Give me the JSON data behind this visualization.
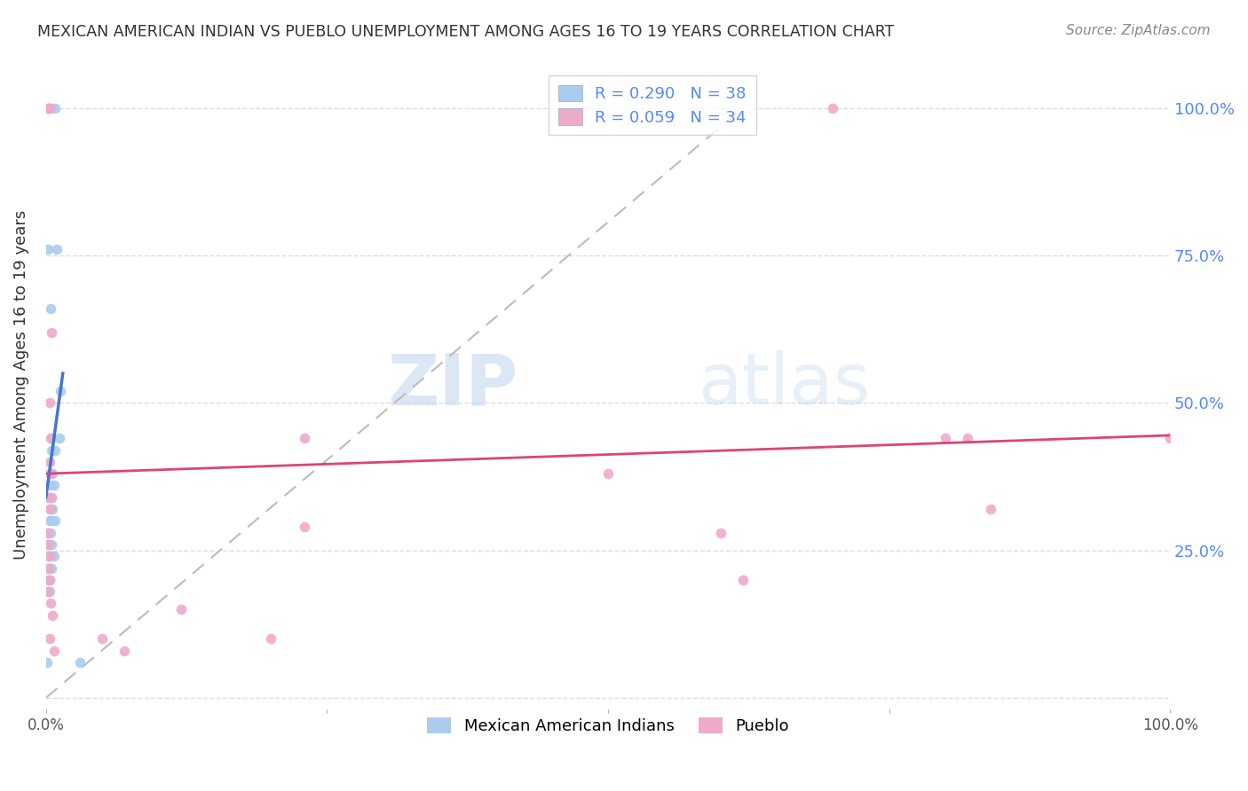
{
  "title": "MEXICAN AMERICAN INDIAN VS PUEBLO UNEMPLOYMENT AMONG AGES 16 TO 19 YEARS CORRELATION CHART",
  "source": "Source: ZipAtlas.com",
  "ylabel": "Unemployment Among Ages 16 to 19 years",
  "xlim": [
    0,
    1.0
  ],
  "ylim": [
    -0.02,
    1.08
  ],
  "watermark_zip": "ZIP",
  "watermark_atlas": "atlas",
  "legend_label_blue": "Mexican American Indians",
  "legend_label_pink": "Pueblo",
  "R_blue": 0.29,
  "N_blue": 38,
  "R_pink": 0.059,
  "N_pink": 34,
  "blue_line": [
    [
      0.0,
      0.34
    ],
    [
      0.015,
      0.55
    ]
  ],
  "pink_line": [
    [
      0.0,
      0.38
    ],
    [
      1.0,
      0.445
    ]
  ],
  "dashed_line": [
    [
      0.0,
      0.0
    ],
    [
      0.62,
      1.0
    ]
  ],
  "blue_scatter": [
    [
      0.002,
      1.0
    ],
    [
      0.003,
      1.0
    ],
    [
      0.008,
      1.0
    ],
    [
      0.002,
      0.76
    ],
    [
      0.01,
      0.76
    ],
    [
      0.004,
      0.66
    ],
    [
      0.013,
      0.52
    ],
    [
      0.005,
      0.44
    ],
    [
      0.012,
      0.44
    ],
    [
      0.005,
      0.42
    ],
    [
      0.008,
      0.42
    ],
    [
      0.003,
      0.38
    ],
    [
      0.006,
      0.38
    ],
    [
      0.004,
      0.36
    ],
    [
      0.007,
      0.36
    ],
    [
      0.003,
      0.34
    ],
    [
      0.005,
      0.34
    ],
    [
      0.004,
      0.32
    ],
    [
      0.006,
      0.32
    ],
    [
      0.003,
      0.3
    ],
    [
      0.005,
      0.3
    ],
    [
      0.008,
      0.3
    ],
    [
      0.002,
      0.28
    ],
    [
      0.004,
      0.28
    ],
    [
      0.003,
      0.26
    ],
    [
      0.005,
      0.26
    ],
    [
      0.002,
      0.24
    ],
    [
      0.004,
      0.24
    ],
    [
      0.007,
      0.24
    ],
    [
      0.002,
      0.22
    ],
    [
      0.003,
      0.22
    ],
    [
      0.005,
      0.22
    ],
    [
      0.002,
      0.2
    ],
    [
      0.003,
      0.2
    ],
    [
      0.002,
      0.18
    ],
    [
      0.003,
      0.18
    ],
    [
      0.03,
      0.06
    ],
    [
      0.001,
      0.06
    ]
  ],
  "pink_scatter": [
    [
      0.002,
      1.0
    ],
    [
      0.003,
      1.0
    ],
    [
      0.005,
      0.62
    ],
    [
      0.003,
      0.5
    ],
    [
      0.004,
      0.44
    ],
    [
      0.003,
      0.4
    ],
    [
      0.004,
      0.38
    ],
    [
      0.002,
      0.34
    ],
    [
      0.005,
      0.34
    ],
    [
      0.003,
      0.32
    ],
    [
      0.002,
      0.28
    ],
    [
      0.002,
      0.26
    ],
    [
      0.003,
      0.24
    ],
    [
      0.002,
      0.22
    ],
    [
      0.003,
      0.2
    ],
    [
      0.002,
      0.18
    ],
    [
      0.004,
      0.16
    ],
    [
      0.006,
      0.14
    ],
    [
      0.003,
      0.1
    ],
    [
      0.007,
      0.08
    ],
    [
      0.05,
      0.1
    ],
    [
      0.07,
      0.08
    ],
    [
      0.12,
      0.15
    ],
    [
      0.2,
      0.1
    ],
    [
      0.23,
      0.44
    ],
    [
      0.23,
      0.29
    ],
    [
      0.5,
      0.38
    ],
    [
      0.6,
      0.28
    ],
    [
      0.62,
      0.2
    ],
    [
      0.7,
      1.0
    ],
    [
      0.8,
      0.44
    ],
    [
      0.82,
      0.44
    ],
    [
      0.84,
      0.32
    ],
    [
      1.0,
      0.44
    ]
  ],
  "blue_line_color": "#4477cc",
  "pink_line_color": "#dd4477",
  "dashed_line_color": "#bbbbbb",
  "scatter_blue": "#aaccee",
  "scatter_pink": "#eeaacc",
  "background_color": "#ffffff",
  "grid_color": "#dddddd",
  "title_color": "#333333",
  "right_tick_color": "#5588ff",
  "marker_size": 70
}
